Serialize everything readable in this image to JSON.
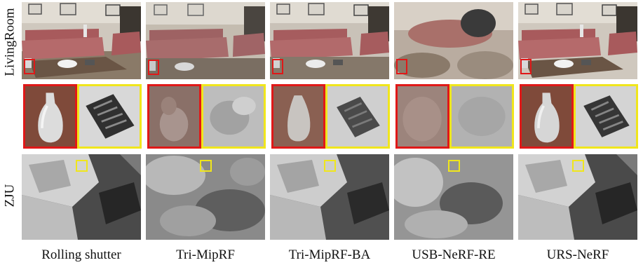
{
  "row_labels": {
    "living": "LivingRoom",
    "zju": "ZJU"
  },
  "columns": [
    {
      "label": "Rolling shutter",
      "quality": "sharp"
    },
    {
      "label": "Tri-MipRF",
      "quality": "blurry"
    },
    {
      "label": "Tri-MipRF-BA",
      "quality": "medium"
    },
    {
      "label": "USB-NeRF-RE",
      "quality": "very-blurry"
    },
    {
      "label": "URS-NeRF",
      "quality": "sharp"
    }
  ],
  "colors": {
    "red_box": "#e01818",
    "yellow_box": "#f0e61c"
  }
}
